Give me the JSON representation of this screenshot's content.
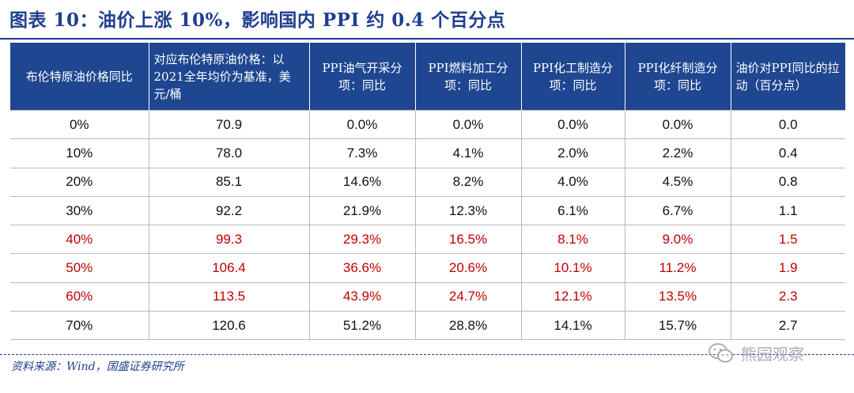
{
  "title": "图表 10：油价上涨 10%，影响国内 PPI 约 0.4 个百分点",
  "table": {
    "headers": [
      "布伦特原油价格同比",
      "对应布伦特原油价格：以2021全年均价为基准，美元/桶",
      "PPI油气开采分项：同比",
      "PPI燃料加工分项：同比",
      "PPI化工制造分项：同比",
      "PPI化纤制造分项：同比",
      "油价对PPI同比的拉动（百分点）"
    ],
    "rows": [
      {
        "highlight": false,
        "cells": [
          "0%",
          "70.9",
          "0.0%",
          "0.0%",
          "0.0%",
          "0.0%",
          "0.0"
        ]
      },
      {
        "highlight": false,
        "cells": [
          "10%",
          "78.0",
          "7.3%",
          "4.1%",
          "2.0%",
          "2.2%",
          "0.4"
        ]
      },
      {
        "highlight": false,
        "cells": [
          "20%",
          "85.1",
          "14.6%",
          "8.2%",
          "4.0%",
          "4.5%",
          "0.8"
        ]
      },
      {
        "highlight": false,
        "cells": [
          "30%",
          "92.2",
          "21.9%",
          "12.3%",
          "6.1%",
          "6.7%",
          "1.1"
        ]
      },
      {
        "highlight": true,
        "cells": [
          "40%",
          "99.3",
          "29.3%",
          "16.5%",
          "8.1%",
          "9.0%",
          "1.5"
        ]
      },
      {
        "highlight": true,
        "cells": [
          "50%",
          "106.4",
          "36.6%",
          "20.6%",
          "10.1%",
          "11.2%",
          "1.9"
        ]
      },
      {
        "highlight": true,
        "cells": [
          "60%",
          "113.5",
          "43.9%",
          "24.7%",
          "12.1%",
          "13.5%",
          "2.3"
        ]
      },
      {
        "highlight": false,
        "cells": [
          "70%",
          "120.6",
          "51.2%",
          "28.8%",
          "14.1%",
          "15.7%",
          "2.7"
        ]
      }
    ]
  },
  "source": "资料来源：Wind，国盛证券研究所",
  "watermark": {
    "text": "熊园观察",
    "icon": "wechat-icon"
  },
  "colors": {
    "header_bg": "#1f4690",
    "title": "#1f3f8f",
    "highlight_text": "#c00000"
  }
}
